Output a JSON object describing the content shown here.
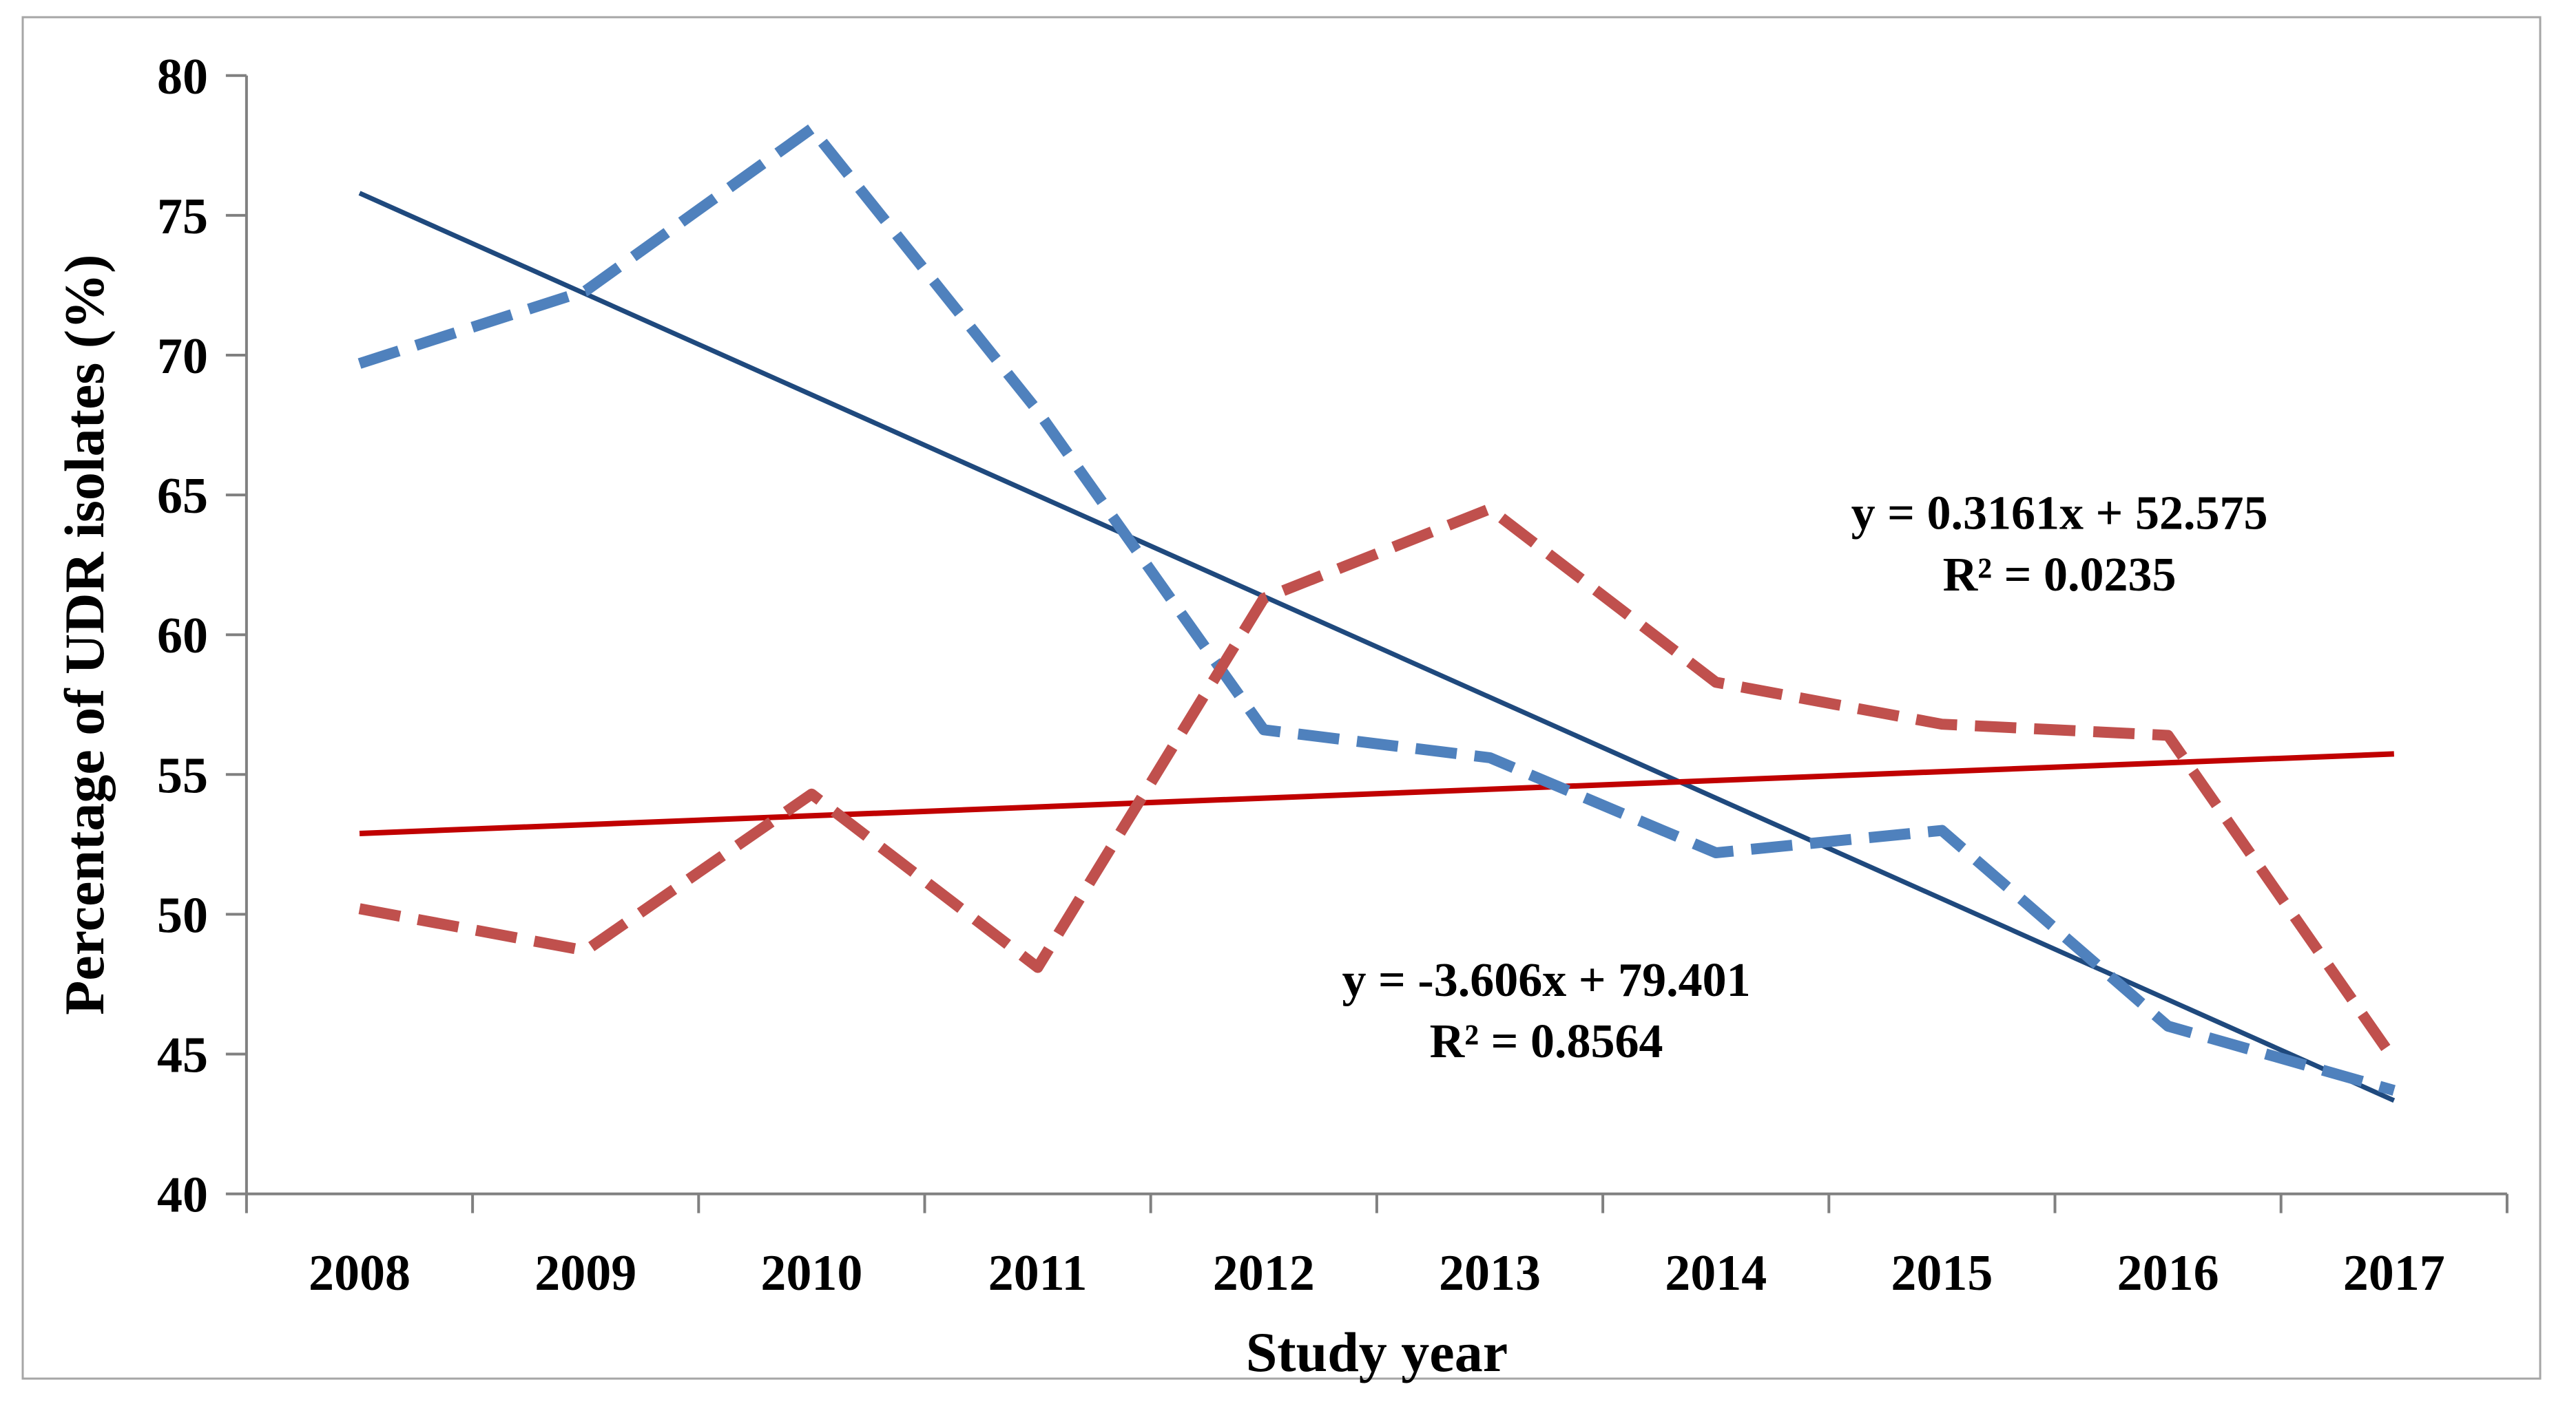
{
  "chart_data": {
    "type": "line",
    "title": "",
    "xlabel": "Study year",
    "ylabel": "Percentage of UDR isolates (%)",
    "categories": [
      "2008",
      "2009",
      "2010",
      "2011",
      "2012",
      "2013",
      "2014",
      "2015",
      "2016",
      "2017"
    ],
    "ylim": [
      40,
      80
    ],
    "ytick_step": 5,
    "grid": false,
    "legend": "none",
    "series": [
      {
        "id": "blue-dashed-series",
        "style": "dashed",
        "color": "#4F81BD",
        "values": [
          69.7,
          72.3,
          78.1,
          68.0,
          56.6,
          55.6,
          52.2,
          53.0,
          46.0,
          43.7
        ]
      },
      {
        "id": "red-dashed-series",
        "style": "dashed",
        "color": "#C0504D",
        "values": [
          50.2,
          48.7,
          54.3,
          48.1,
          61.3,
          64.5,
          58.3,
          56.8,
          56.4,
          44.8
        ]
      }
    ],
    "trendlines": [
      {
        "series": "blue-dashed-series",
        "equation": "y = -3.606x + 79.401",
        "r2": "R² = 0.8564",
        "slope": -3.606,
        "intercept": 79.401,
        "color": "#1F497D",
        "label_color": "#3A3A99",
        "label_anchor": {
          "x": 6.25,
          "y": 64.0
        },
        "label_anchor_value_y": 47.7
      },
      {
        "series": "red-dashed-series",
        "equation": "y = 0.3161x + 52.575",
        "r2": "R² = 0.0235",
        "slope": 0.3161,
        "intercept": 52.575,
        "color": "#C00000",
        "label_color": "#C00000",
        "label_anchor": {
          "x": 8.52,
          "y": 64.4
        },
        "label_anchor_value_y": 64.4
      }
    ],
    "colors": {
      "axis": "#808080",
      "border": "#A6A6A6",
      "background": "#FFFFFF",
      "tick_text": "#000000"
    }
  }
}
